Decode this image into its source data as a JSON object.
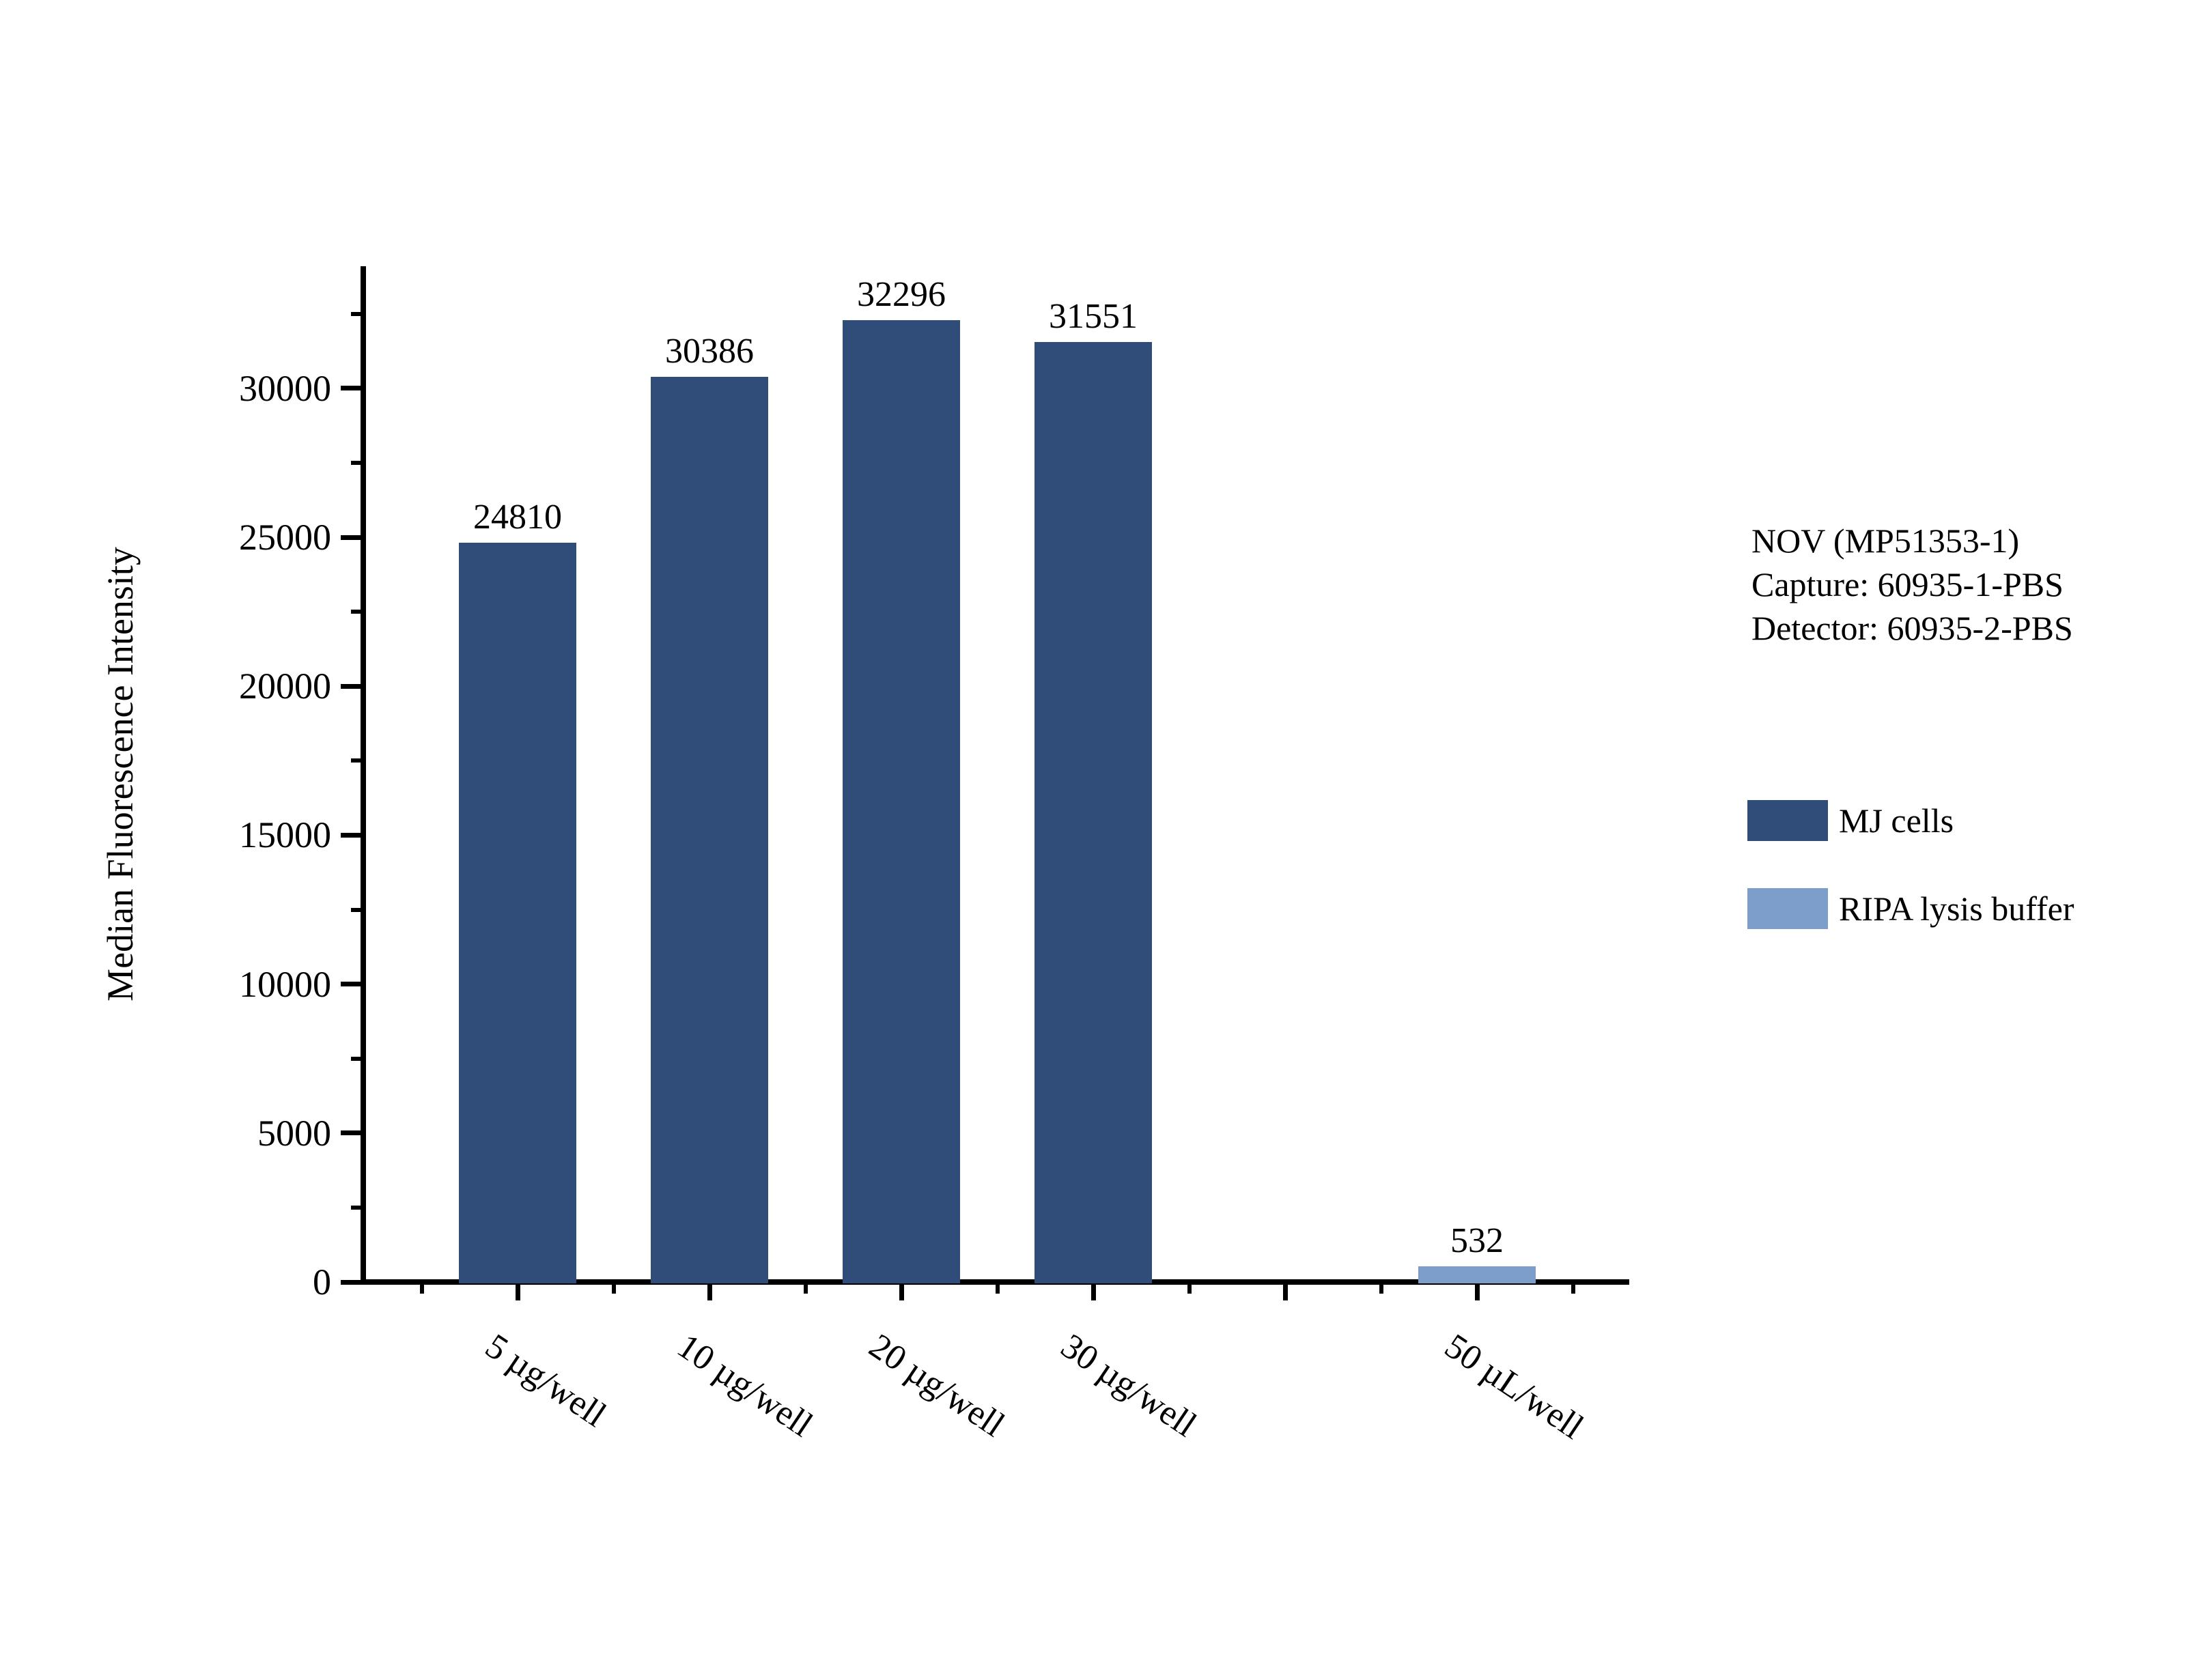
{
  "chart_data": {
    "type": "bar",
    "title": "",
    "xlabel": "",
    "ylabel": "Median Fluorescence Intensity",
    "categories": [
      "5 µg/well",
      "10 µg/well",
      "20 µg/well",
      "30 µg/well",
      "50 µL/well"
    ],
    "category_slots": [
      0,
      1,
      2,
      3,
      5
    ],
    "slot_count": 6,
    "series": [
      {
        "name": "MJ cells",
        "color": "#2F4D78",
        "values": [
          24810,
          30386,
          32296,
          31551,
          null
        ]
      },
      {
        "name": "RIPA lysis buffer",
        "color": "#7D9DCB",
        "values": [
          null,
          null,
          null,
          null,
          532
        ]
      }
    ],
    "bar_value_labels": [
      "24810",
      "30386",
      "32296",
      "31551",
      "532"
    ],
    "ylim": [
      0,
      34100
    ],
    "yticks_major": [
      0,
      5000,
      10000,
      15000,
      20000,
      25000,
      30000
    ],
    "yticks_minor": [
      2500,
      7500,
      12500,
      17500,
      22500,
      27500,
      32500
    ],
    "grid": false,
    "legend_position": "right-outside",
    "bar_color_dark": "#2F4D78",
    "bar_color_light": "#7D9DCB",
    "axis_color": "#000000"
  },
  "annotation": {
    "lines": [
      "NOV (MP51353-1)",
      "Capture: 60935-1-PBS",
      "Detector: 60935-2-PBS"
    ]
  },
  "legend": {
    "items": [
      {
        "label": "MJ cells",
        "color": "#2F4D78"
      },
      {
        "label": "RIPA lysis buffer",
        "color": "#7D9DCB"
      }
    ]
  }
}
